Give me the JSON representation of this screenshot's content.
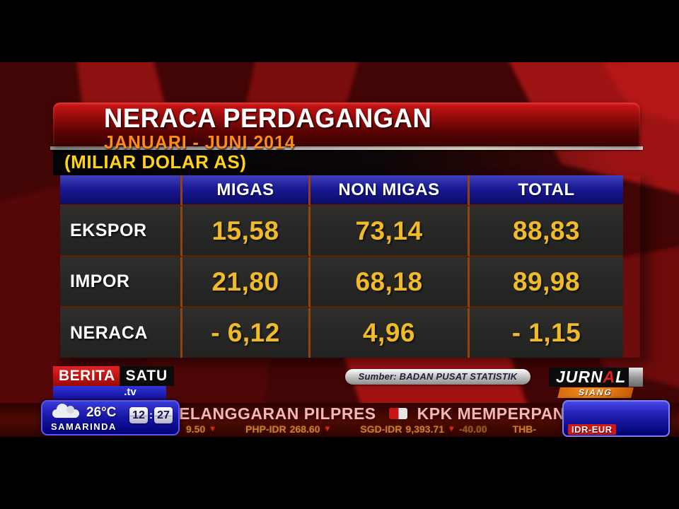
{
  "header": {
    "title": "NERACA PERDAGANGAN",
    "subtitle": "JANUARI - JUNI 2014",
    "units": "(MILIAR DOLAR AS)"
  },
  "chart_data": {
    "type": "table",
    "title": "NERACA PERDAGANGAN",
    "subtitle": "JANUARI - JUNI 2014",
    "units": "MILIAR DOLAR AS",
    "columns": [
      "MIGAS",
      "NON MIGAS",
      "TOTAL"
    ],
    "row_labels": [
      "EKSPOR",
      "IMPOR",
      "NERACA"
    ],
    "values": [
      [
        15.58,
        73.14,
        88.83
      ],
      [
        21.8,
        68.18,
        89.98
      ],
      [
        -6.12,
        4.96,
        -1.15
      ]
    ],
    "source": "BADAN PUSAT STATISTIK"
  },
  "table": {
    "columns": [
      "",
      "MIGAS",
      "NON MIGAS",
      "TOTAL"
    ],
    "rows": [
      {
        "label": "EKSPOR",
        "values": [
          "15,58",
          "73,14",
          "88,83"
        ]
      },
      {
        "label": "IMPOR",
        "values": [
          "21,80",
          "68,18",
          "89,98"
        ]
      },
      {
        "label": "NERACA",
        "values": [
          "- 6,12",
          "4,96",
          "- 1,15"
        ]
      }
    ]
  },
  "footer": {
    "source_label": "Sumber: BADAN PUSAT STATISTIK",
    "channel": {
      "berita": "BERITA",
      "satu": "SATU",
      "tv": ".tv"
    },
    "program": {
      "name_1": "JURN",
      "accent": "A",
      "name_2": "L",
      "edition": "SIANG"
    }
  },
  "ticker": {
    "headline_1": "ELANGGARAN PILPRES",
    "headline_2": "KPK MEMPERPANJANG MASA",
    "currencies": [
      {
        "label": "",
        "value": "9.50",
        "arrow": "▼",
        "change": ""
      },
      {
        "label": "PHP-IDR",
        "value": "268.60",
        "arrow": "▼",
        "change": ""
      },
      {
        "label": "SGD-IDR",
        "value": "9,393.71",
        "arrow": "▼",
        "change": "-40.00"
      },
      {
        "label": "THB-",
        "value": "",
        "arrow": "",
        "change": ""
      }
    ],
    "corner_pair": "IDR-EUR",
    "weather": {
      "temp": "26°C",
      "city": "SAMARINDA"
    },
    "clock": {
      "hours": "12",
      "minutes": "27",
      "separator": ":"
    }
  },
  "colors": {
    "accent_gold": "#f0ba29",
    "header_blue": "#1a1a96",
    "brand_red": "#c01414",
    "subtitle_orange": "#ff8c1a",
    "ticker_pink": "#f5b6b6",
    "widget_blue": "#1818a8"
  }
}
